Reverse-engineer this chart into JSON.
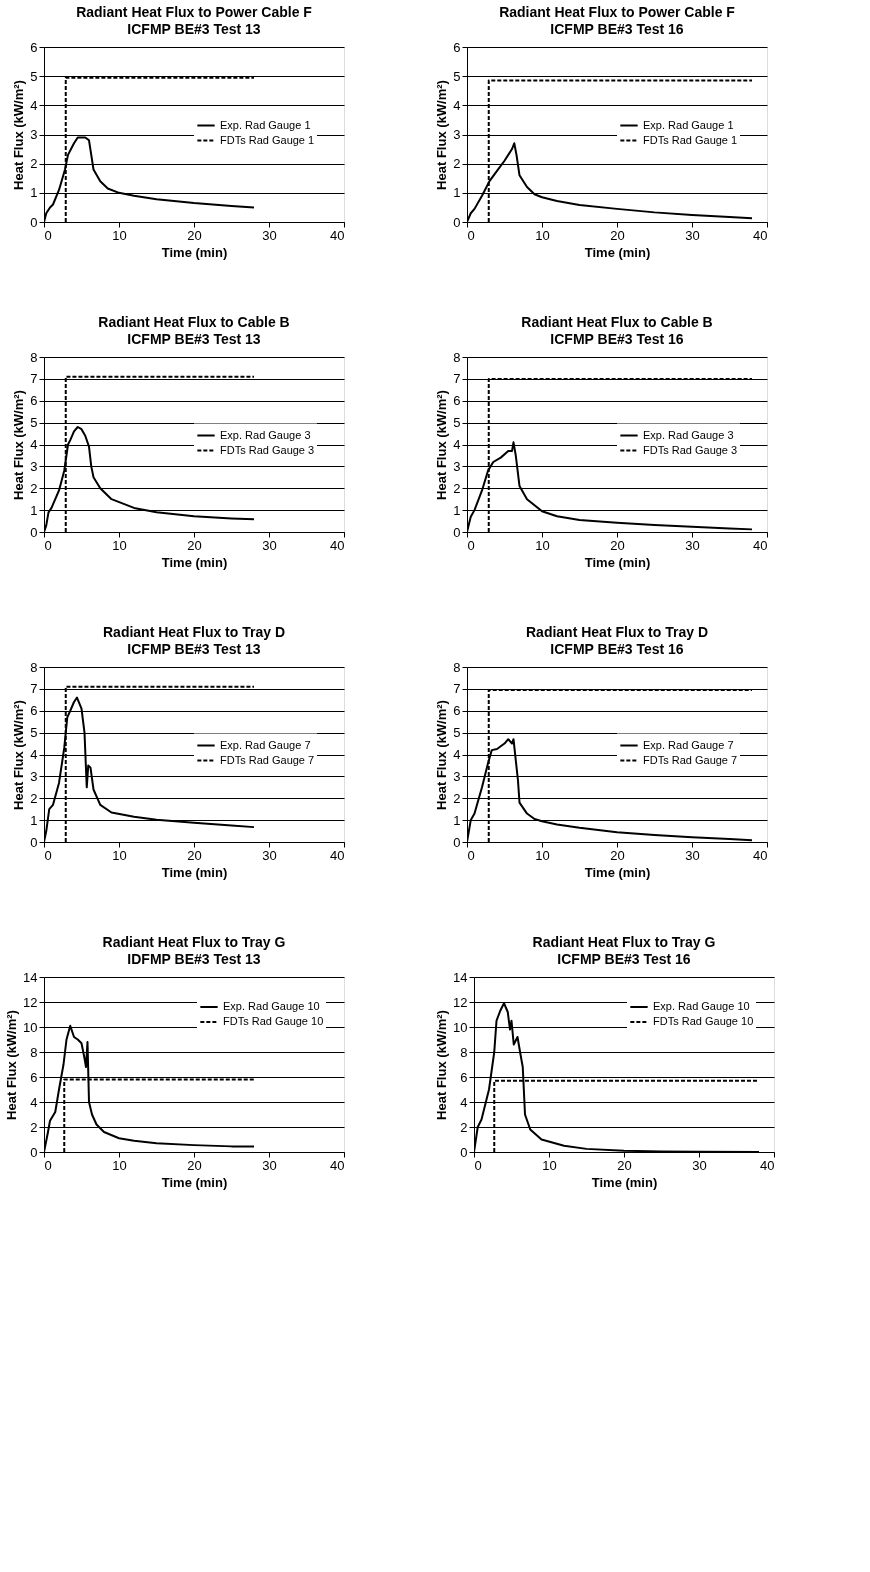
{
  "chart_data": [
    {
      "type": "line",
      "title": "Radiant Heat Flux to Power Cable F",
      "subtitle": "ICFMP BE#3 Test 13",
      "xlabel": "Time (min)",
      "ylabel": "Heat Flux (kW/m²)",
      "xlim": [
        0,
        40
      ],
      "xticks": [
        0,
        10,
        20,
        30,
        40
      ],
      "ylim": [
        0,
        6
      ],
      "yticks": [
        0,
        1,
        2,
        3,
        4,
        5,
        6
      ],
      "grid": "y",
      "legend": "right",
      "series": [
        {
          "name": "Exp. Rad Gauge 1",
          "color": "#000000",
          "line_style": "solid",
          "x": [
            0,
            0.3,
            0.8,
            1.2,
            2,
            2.8,
            3.2,
            4,
            4.5,
            5.5,
            6,
            6.3,
            6.6,
            7.5,
            8.5,
            10,
            12,
            15,
            20,
            25,
            28
          ],
          "values": [
            0,
            0.3,
            0.5,
            0.6,
            1.1,
            1.8,
            2.3,
            2.7,
            2.9,
            2.9,
            2.8,
            2.3,
            1.8,
            1.4,
            1.15,
            1.0,
            0.9,
            0.78,
            0.65,
            0.55,
            0.5
          ]
        },
        {
          "name": "FDTs Rad Gauge 1",
          "color": "#000000",
          "line_style": "dashed",
          "x": [
            2.9,
            2.9,
            28
          ],
          "values": [
            0,
            4.95,
            4.95
          ]
        }
      ]
    },
    {
      "type": "line",
      "title": "Radiant Heat Flux to Power Cable F",
      "subtitle": "ICFMP BE#3 Test 16",
      "xlabel": "Time (min)",
      "ylabel": "Heat Flux (kW/m²)",
      "xlim": [
        0,
        40
      ],
      "xticks": [
        0,
        10,
        20,
        30,
        40
      ],
      "ylim": [
        0,
        6
      ],
      "yticks": [
        0,
        1,
        2,
        3,
        4,
        5,
        6
      ],
      "grid": "y",
      "legend": "right",
      "series": [
        {
          "name": "Exp. Rad Gauge 1",
          "color": "#000000",
          "line_style": "solid",
          "x": [
            0,
            0.5,
            1,
            2,
            3,
            4,
            5,
            6,
            6.3,
            6.6,
            7,
            8,
            9,
            10,
            12,
            15,
            20,
            25,
            30,
            35,
            38
          ],
          "values": [
            0,
            0.3,
            0.45,
            0.9,
            1.4,
            1.75,
            2.1,
            2.5,
            2.7,
            2.3,
            1.6,
            1.2,
            0.95,
            0.85,
            0.72,
            0.58,
            0.45,
            0.33,
            0.24,
            0.17,
            0.13
          ]
        },
        {
          "name": "FDTs Rad Gauge 1",
          "color": "#000000",
          "line_style": "dashed",
          "x": [
            2.9,
            2.9,
            38
          ],
          "values": [
            0,
            4.85,
            4.85
          ]
        }
      ]
    },
    {
      "type": "line",
      "title": "Radiant Heat Flux to Cable B",
      "subtitle": "ICFMP BE#3 Test 13",
      "xlabel": "Time (min)",
      "ylabel": "Heat Flux (kW/m²)",
      "xlim": [
        0,
        40
      ],
      "xticks": [
        0,
        10,
        20,
        30,
        40
      ],
      "ylim": [
        0,
        8
      ],
      "yticks": [
        0,
        1,
        2,
        3,
        4,
        5,
        6,
        7,
        8
      ],
      "grid": "y",
      "legend": "right",
      "series": [
        {
          "name": "Exp. Rad Gauge 3",
          "color": "#000000",
          "line_style": "solid",
          "x": [
            0,
            0.3,
            0.6,
            1,
            2,
            2.7,
            3.2,
            3.5,
            4,
            4.5,
            5,
            5.5,
            6,
            6.3,
            6.6,
            7.5,
            9,
            12,
            15,
            20,
            25,
            28
          ],
          "values": [
            0,
            0.3,
            0.9,
            1.1,
            1.9,
            2.8,
            4.0,
            4.2,
            4.6,
            4.8,
            4.7,
            4.4,
            3.9,
            3.0,
            2.5,
            2.0,
            1.5,
            1.1,
            0.9,
            0.72,
            0.62,
            0.58
          ]
        },
        {
          "name": "FDTs Rad Gauge 3",
          "color": "#000000",
          "line_style": "dashed",
          "x": [
            2.9,
            2.9,
            28
          ],
          "values": [
            0,
            7.1,
            7.1
          ]
        }
      ]
    },
    {
      "type": "line",
      "title": "Radiant Heat Flux to Cable B",
      "subtitle": "ICFMP BE#3 Test 16",
      "xlabel": "Time (min)",
      "ylabel": "Heat Flux (kW/m²)",
      "xlim": [
        0,
        40
      ],
      "xticks": [
        0,
        10,
        20,
        30,
        40
      ],
      "ylim": [
        0,
        8
      ],
      "yticks": [
        0,
        1,
        2,
        3,
        4,
        5,
        6,
        7,
        8
      ],
      "grid": "y",
      "legend": "right",
      "series": [
        {
          "name": "Exp. Rad Gauge 3",
          "color": "#000000",
          "line_style": "solid",
          "x": [
            0,
            0.5,
            1,
            2,
            2.8,
            3.5,
            4.5,
            5.5,
            6,
            6.2,
            6.5,
            7,
            8,
            10,
            12,
            15,
            20,
            25,
            30,
            35,
            38
          ],
          "values": [
            0,
            0.7,
            1.0,
            1.9,
            2.8,
            3.2,
            3.4,
            3.7,
            3.7,
            4.1,
            3.5,
            2.1,
            1.5,
            0.95,
            0.72,
            0.55,
            0.42,
            0.32,
            0.24,
            0.16,
            0.12
          ]
        },
        {
          "name": "FDTs Rad Gauge 3",
          "color": "#000000",
          "line_style": "dashed",
          "x": [
            2.9,
            2.9,
            38
          ],
          "values": [
            0,
            7.0,
            7.0
          ]
        }
      ]
    },
    {
      "type": "line",
      "title": "Radiant Heat Flux to Tray D",
      "subtitle": "ICFMP BE#3 Test 13",
      "xlabel": "Time (min)",
      "ylabel": "Heat Flux (kW/m²)",
      "xlim": [
        0,
        40
      ],
      "xticks": [
        0,
        10,
        20,
        30,
        40
      ],
      "ylim": [
        0,
        8
      ],
      "yticks": [
        0,
        1,
        2,
        3,
        4,
        5,
        6,
        7,
        8
      ],
      "grid": "y",
      "legend": "right",
      "series": [
        {
          "name": "Exp. Rad Gauge 7",
          "color": "#000000",
          "line_style": "solid",
          "x": [
            0,
            0.3,
            0.7,
            1.2,
            2,
            2.7,
            3.1,
            3.5,
            4,
            4.4,
            5,
            5.4,
            5.7,
            5.9,
            6.2,
            6.6,
            7.5,
            9,
            12,
            15,
            20,
            25,
            28
          ],
          "values": [
            0,
            0.5,
            1.5,
            1.7,
            2.7,
            4.3,
            5.7,
            6.0,
            6.4,
            6.6,
            6.1,
            5.0,
            2.5,
            3.5,
            3.4,
            2.4,
            1.7,
            1.35,
            1.15,
            1.02,
            0.88,
            0.75,
            0.68
          ]
        },
        {
          "name": "FDTs Rad Gauge 7",
          "color": "#000000",
          "line_style": "dashed",
          "x": [
            2.9,
            2.9,
            28
          ],
          "values": [
            0,
            7.1,
            7.1
          ]
        }
      ]
    },
    {
      "type": "line",
      "title": "Radiant Heat Flux to Tray D",
      "subtitle": "ICFMP BE#3 Test 16",
      "xlabel": "Time (min)",
      "ylabel": "Heat Flux (kW/m²)",
      "xlim": [
        0,
        40
      ],
      "xticks": [
        0,
        10,
        20,
        30,
        40
      ],
      "ylim": [
        0,
        8
      ],
      "yticks": [
        0,
        1,
        2,
        3,
        4,
        5,
        6,
        7,
        8
      ],
      "grid": "y",
      "legend": "right",
      "series": [
        {
          "name": "Exp. Rad Gauge 7",
          "color": "#000000",
          "line_style": "solid",
          "x": [
            0,
            0.5,
            1,
            2,
            2.8,
            3.3,
            4,
            5,
            5.5,
            6,
            6.2,
            6.8,
            7,
            8,
            9,
            10,
            12,
            15,
            20,
            25,
            30,
            35,
            38
          ],
          "values": [
            0,
            1.0,
            1.3,
            2.5,
            3.6,
            4.2,
            4.25,
            4.5,
            4.7,
            4.5,
            4.7,
            2.8,
            1.8,
            1.3,
            1.05,
            0.95,
            0.8,
            0.65,
            0.45,
            0.32,
            0.22,
            0.14,
            0.08
          ]
        },
        {
          "name": "FDTs Rad Gauge 7",
          "color": "#000000",
          "line_style": "dashed",
          "x": [
            2.9,
            2.9,
            38
          ],
          "values": [
            0,
            6.95,
            6.95
          ]
        }
      ]
    },
    {
      "type": "line",
      "title": "Radiant Heat Flux to Tray G",
      "subtitle": "IDFMP BE#3 Test 13",
      "xlabel": "Time (min)",
      "ylabel": "Heat Flux (kW/m²)",
      "xlim": [
        0,
        40
      ],
      "xticks": [
        0,
        10,
        20,
        30,
        40
      ],
      "ylim": [
        0,
        14
      ],
      "yticks": [
        0,
        2,
        4,
        6,
        8,
        10,
        12,
        14
      ],
      "grid": "y",
      "legend": "top right",
      "series": [
        {
          "name": "Exp. Rad Gauge 10",
          "color": "#000000",
          "line_style": "solid",
          "x": [
            0,
            0.5,
            0.8,
            1.5,
            2,
            2.6,
            3,
            3.5,
            4,
            4.5,
            5,
            5.4,
            5.6,
            5.8,
            6,
            6.4,
            7,
            8,
            10,
            12,
            15,
            20,
            25,
            28
          ],
          "values": [
            0,
            1.5,
            2.5,
            3.2,
            5,
            7,
            9,
            10.1,
            9.2,
            9.0,
            8.7,
            7.5,
            6.8,
            8.8,
            4.0,
            3.0,
            2.2,
            1.6,
            1.1,
            0.9,
            0.7,
            0.55,
            0.45,
            0.45
          ]
        },
        {
          "name": "FDTs Rad Gauge 10",
          "color": "#000000",
          "line_style": "dashed",
          "x": [
            2.7,
            2.7,
            28
          ],
          "values": [
            0,
            5.8,
            5.8
          ]
        }
      ]
    },
    {
      "type": "line",
      "title": "Radiant Heat Flux to Tray G",
      "subtitle": "ICFMP BE#3 Test 16",
      "xlabel": "Time (min)",
      "ylabel": "Heat Flux (kW/m²)",
      "xlim": [
        0,
        40
      ],
      "xticks": [
        0,
        10,
        20,
        30,
        40
      ],
      "ylim": [
        0,
        14
      ],
      "yticks": [
        0,
        2,
        4,
        6,
        8,
        10,
        12,
        14
      ],
      "grid": "y",
      "legend": "top right",
      "series": [
        {
          "name": "Exp. Rad Gauge 10",
          "color": "#000000",
          "line_style": "solid",
          "x": [
            0,
            0.5,
            1,
            2,
            2.7,
            3,
            3.5,
            4,
            4.5,
            4.8,
            5,
            5.3,
            5.8,
            6.2,
            6.5,
            6.8,
            7.5,
            9,
            12,
            15,
            20,
            25,
            30,
            38
          ],
          "values": [
            0,
            2,
            2.6,
            5,
            8,
            10.5,
            11.3,
            11.9,
            11.2,
            9.8,
            10.5,
            8.6,
            9.2,
            7.8,
            6.8,
            3.0,
            1.8,
            1.0,
            0.5,
            0.25,
            0.1,
            0.05,
            0.02,
            0.0
          ]
        },
        {
          "name": "FDTs Rad Gauge 10",
          "color": "#000000",
          "line_style": "dashed",
          "x": [
            2.7,
            2.7,
            38
          ],
          "values": [
            0,
            5.7,
            5.7
          ]
        }
      ]
    }
  ]
}
